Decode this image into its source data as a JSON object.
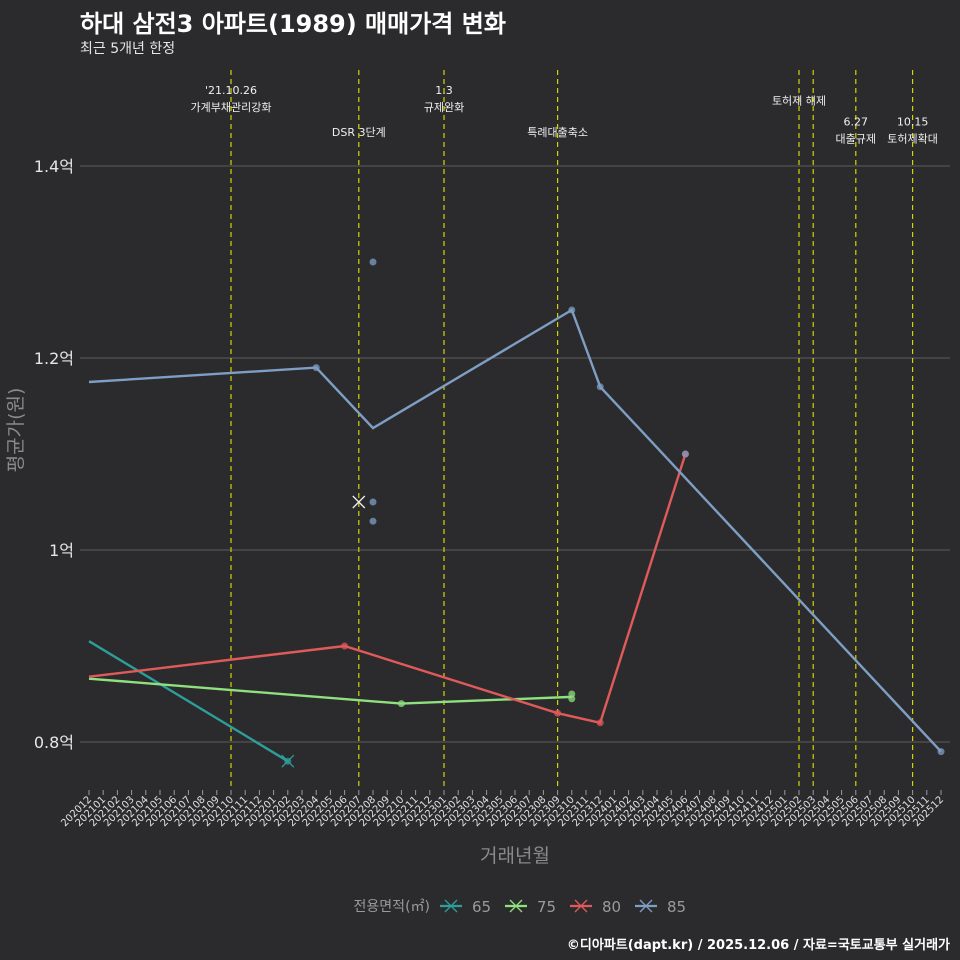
{
  "chart_data": {
    "type": "line",
    "title": "하대 삼전3 아파트(1989) 매매가격 변화",
    "subtitle": "최근 5개년 한정",
    "xlabel": "거래년월",
    "ylabel": "평균가(원)",
    "caption": "©디아파트(dapt.kr) / 2025.12.06 / 자료=국토교통부 실거래가",
    "ylim": [
      0.75,
      1.5
    ],
    "yticks": [
      {
        "value": 0.8,
        "label": "0.8억"
      },
      {
        "value": 1.0,
        "label": "1억"
      },
      {
        "value": 1.2,
        "label": "1.2억"
      },
      {
        "value": 1.4,
        "label": "1.4억"
      }
    ],
    "categories": [
      "202012",
      "202101",
      "202102",
      "202103",
      "202104",
      "202105",
      "202106",
      "202107",
      "202108",
      "202109",
      "202110",
      "202111",
      "202112",
      "202201",
      "202202",
      "202203",
      "202204",
      "202205",
      "202206",
      "202207",
      "202208",
      "202209",
      "202210",
      "202211",
      "202212",
      "202301",
      "202302",
      "202303",
      "202304",
      "202305",
      "202306",
      "202307",
      "202308",
      "202309",
      "202310",
      "202311",
      "202312",
      "202401",
      "202402",
      "202403",
      "202404",
      "202405",
      "202406",
      "202407",
      "202408",
      "202409",
      "202410",
      "202411",
      "202412",
      "202501",
      "202502",
      "202503",
      "202504",
      "202505",
      "202506",
      "202507",
      "202508",
      "202509",
      "202510",
      "202511",
      "202512"
    ],
    "legend_title": "전용면적(㎡)",
    "series": [
      {
        "name": "65",
        "color": "#2e9e9a",
        "line": [
          [
            "202012",
            0.905
          ],
          [
            "202202",
            0.78
          ]
        ],
        "points": [
          [
            "202202",
            0.78
          ]
        ],
        "crosses": [
          [
            "202202",
            0.78
          ]
        ]
      },
      {
        "name": "75",
        "color": "#8fe07f",
        "line": [
          [
            "202012",
            0.866
          ],
          [
            "202210",
            0.84
          ],
          [
            "202310",
            0.847
          ]
        ],
        "points": [
          [
            "202210",
            0.84
          ],
          [
            "202310",
            0.85
          ],
          [
            "202310",
            0.845
          ]
        ],
        "crosses": []
      },
      {
        "name": "80",
        "color": "#e05a5a",
        "line": [
          [
            "202012",
            0.868
          ],
          [
            "202206",
            0.9
          ],
          [
            "202309",
            0.83
          ],
          [
            "202312",
            0.82
          ],
          [
            "202406",
            1.1
          ]
        ],
        "points": [
          [
            "202206",
            0.9
          ],
          [
            "202309",
            0.83
          ],
          [
            "202312",
            0.82
          ],
          [
            "202406",
            1.1
          ]
        ],
        "crosses": []
      },
      {
        "name": "85",
        "color": "#7f9ec4",
        "line": [
          [
            "202012",
            1.175
          ],
          [
            "202204",
            1.19
          ],
          [
            "202208",
            1.127
          ],
          [
            "202310",
            1.25
          ],
          [
            "202312",
            1.17
          ],
          [
            "202512",
            0.79
          ]
        ],
        "points": [
          [
            "202204",
            1.19
          ],
          [
            "202208",
            1.3
          ],
          [
            "202208",
            1.05
          ],
          [
            "202208",
            1.03
          ],
          [
            "202310",
            1.25
          ],
          [
            "202312",
            1.17
          ],
          [
            "202406",
            1.1
          ],
          [
            "202512",
            0.79
          ]
        ],
        "crosses": [
          [
            "202207",
            1.05
          ]
        ]
      }
    ],
    "annotations": [
      {
        "x": "202110",
        "lines": [
          "'21.10.26",
          "가계부채관리강화"
        ],
        "row": 0
      },
      {
        "x": "202207",
        "lines": [
          "DSR 3단계"
        ],
        "row": 2
      },
      {
        "x": "202301",
        "lines": [
          "1.3",
          "규제완화"
        ],
        "row": 0
      },
      {
        "x": "202309",
        "lines": [
          "특례대출축소"
        ],
        "row": 2
      },
      {
        "x": "202502",
        "lines": [
          "토허제 해제"
        ],
        "row": 0.5
      },
      {
        "x": "202503",
        "lines": [],
        "row": 0
      },
      {
        "x": "202506",
        "lines": [
          "6.27",
          "대출규제"
        ],
        "row": 1.5
      },
      {
        "x": "202510",
        "lines": [
          "10.15",
          "토허제확대"
        ],
        "row": 1.5
      }
    ]
  }
}
